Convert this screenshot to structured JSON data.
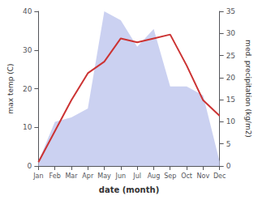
{
  "chart_data": {
    "type": "line",
    "categories": [
      "Jan",
      "Feb",
      "Mar",
      "Apr",
      "May",
      "Jun",
      "Jul",
      "Aug",
      "Sep",
      "Oct",
      "Nov",
      "Dec"
    ],
    "xlabel": "date (month)",
    "ylabel": "max temp (C)",
    "y2label": "med. precipitation (kg/m2)",
    "series": [
      {
        "type": "area",
        "color": "#c5ccf0",
        "axis": "y2",
        "values": [
          1,
          10,
          11,
          13,
          35,
          33,
          27,
          31,
          18,
          18,
          16,
          1
        ]
      },
      {
        "type": "line",
        "color": "#cc3333",
        "values": [
          1,
          9,
          17,
          24,
          27,
          33,
          32,
          33,
          34,
          26,
          17,
          13
        ]
      }
    ],
    "ylim": [
      0,
      40
    ],
    "yticks": [
      0,
      10,
      20,
      30,
      40
    ],
    "y2lim": [
      0,
      35
    ],
    "y2ticks": [
      0,
      5,
      10,
      15,
      20,
      25,
      30,
      35
    ],
    "grid": false
  }
}
